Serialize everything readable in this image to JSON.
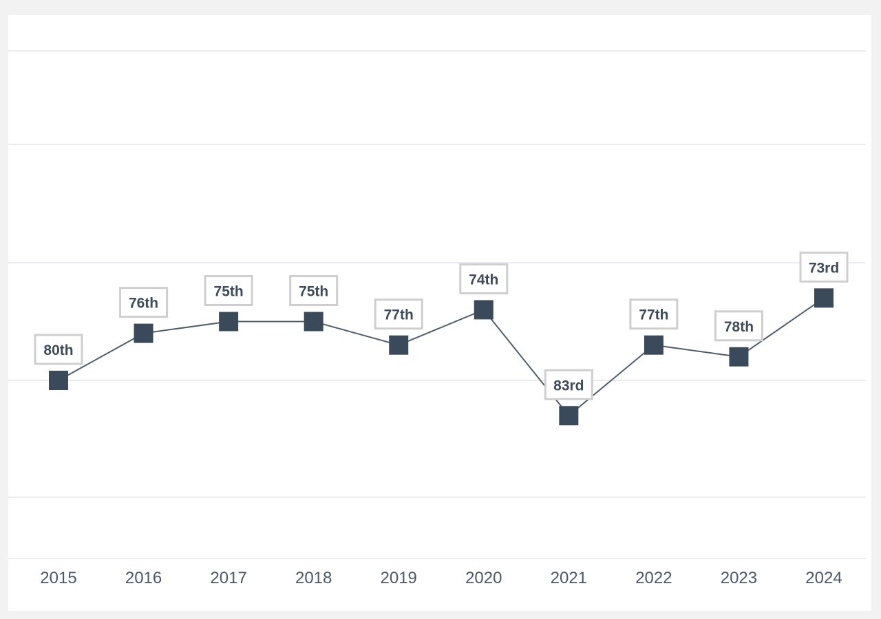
{
  "chart_data": {
    "type": "line",
    "categories": [
      "2015",
      "2016",
      "2017",
      "2018",
      "2019",
      "2020",
      "2021",
      "2022",
      "2023",
      "2024"
    ],
    "series": [
      {
        "values": [
          80,
          76,
          75,
          75,
          77,
          74,
          83,
          77,
          78,
          73
        ],
        "data_labels": [
          "80th",
          "76th",
          "75th",
          "75th",
          "77th",
          "74th",
          "83rd",
          "77th",
          "78th",
          "73rd"
        ]
      }
    ],
    "title": "",
    "xlabel": "",
    "ylabel": "",
    "y_inverted": true,
    "y_axis_labels_visible": false,
    "grid": true,
    "legend": "none",
    "colors": {
      "line": "#4e5d6c",
      "marker": "#3a4a5a",
      "grid": "#e3e6ee",
      "label_border": "#cfcfcf",
      "text": "#3d4b5a"
    }
  }
}
